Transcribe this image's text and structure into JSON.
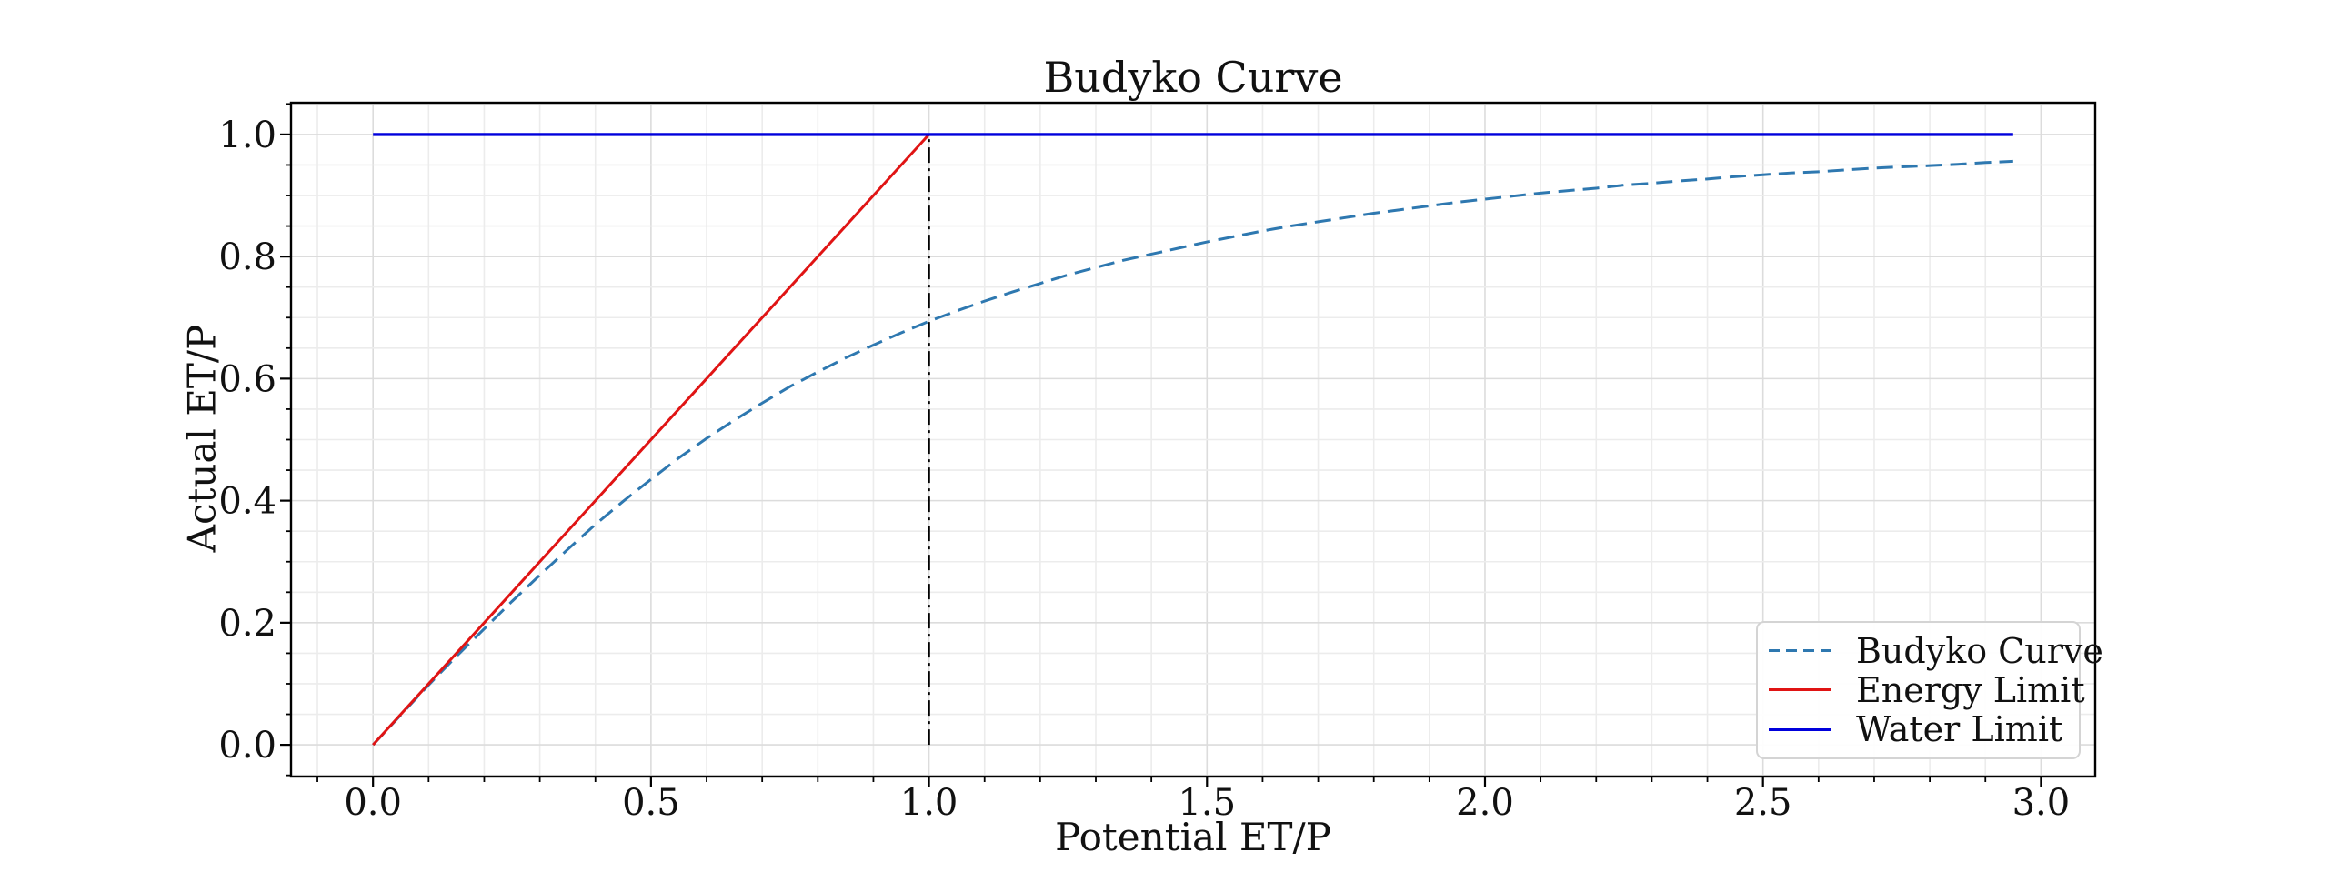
{
  "chart_data": {
    "type": "line",
    "title": "Budyko Curve",
    "xlabel": "Potential ET/P",
    "ylabel": "Actual ET/P",
    "xlim": [
      -0.1475,
      3.0975
    ],
    "ylim": [
      -0.052,
      1.052
    ],
    "grid": true,
    "legend_position": "lower right",
    "xticks": {
      "values": [
        0.0,
        0.5,
        1.0,
        1.5,
        2.0,
        2.5,
        3.0
      ],
      "labels": [
        "0.0",
        "0.5",
        "1.0",
        "1.5",
        "2.0",
        "2.5",
        "3.0"
      ]
    },
    "yticks": {
      "values": [
        0.0,
        0.2,
        0.4,
        0.6,
        0.8,
        1.0
      ],
      "labels": [
        "0.0",
        "0.2",
        "0.4",
        "0.6",
        "0.8",
        "1.0"
      ]
    },
    "minor_step": {
      "x": 0.1,
      "y": 0.05
    },
    "axis_color": "#000000",
    "grid_major_color": "#dcdcdc",
    "grid_minor_color": "#ececec",
    "series": [
      {
        "name": "Budyko Curve",
        "style": "dashed",
        "color": "#2e78b0",
        "width": 3,
        "x": [
          0.0,
          0.05,
          0.1,
          0.15,
          0.2,
          0.25,
          0.3,
          0.35,
          0.4,
          0.45,
          0.5,
          0.55,
          0.6,
          0.65,
          0.7,
          0.75,
          0.8,
          0.85,
          0.9,
          0.95,
          1.0,
          1.05,
          1.1,
          1.15,
          1.2,
          1.25,
          1.3,
          1.35,
          1.4,
          1.45,
          1.5,
          1.55,
          1.6,
          1.65,
          1.7,
          1.75,
          1.8,
          1.85,
          1.9,
          1.95,
          2.0,
          2.05,
          2.1,
          2.15,
          2.2,
          2.25,
          2.3,
          2.35,
          2.4,
          2.45,
          2.5,
          2.55,
          2.6,
          2.65,
          2.7,
          2.75,
          2.8,
          2.85,
          2.9,
          2.95
        ],
        "y": [
          0.0,
          0.049,
          0.098,
          0.145,
          0.19,
          0.235,
          0.278,
          0.32,
          0.361,
          0.399,
          0.435,
          0.47,
          0.502,
          0.532,
          0.56,
          0.587,
          0.611,
          0.634,
          0.655,
          0.675,
          0.694,
          0.711,
          0.727,
          0.742,
          0.756,
          0.77,
          0.782,
          0.794,
          0.804,
          0.814,
          0.824,
          0.833,
          0.842,
          0.85,
          0.857,
          0.864,
          0.871,
          0.877,
          0.883,
          0.889,
          0.894,
          0.899,
          0.904,
          0.908,
          0.912,
          0.917,
          0.92,
          0.924,
          0.927,
          0.931,
          0.934,
          0.937,
          0.939,
          0.942,
          0.945,
          0.947,
          0.949,
          0.951,
          0.954,
          0.956
        ]
      },
      {
        "name": "Energy Limit",
        "style": "solid",
        "color": "#e01414",
        "width": 3,
        "x": [
          0.0,
          1.0
        ],
        "y": [
          0.0,
          1.0
        ]
      },
      {
        "name": "Water Limit",
        "style": "solid",
        "color": "#0000dc",
        "width": 3.4,
        "x": [
          0.0,
          2.95
        ],
        "y": [
          1.0,
          1.0
        ]
      }
    ],
    "annotations": [
      {
        "name": "aridity-threshold-line",
        "style": "dashdot",
        "color": "#000000",
        "width": 2.4,
        "x": [
          1.0,
          1.0
        ],
        "y": [
          0.0,
          1.0
        ]
      }
    ]
  }
}
